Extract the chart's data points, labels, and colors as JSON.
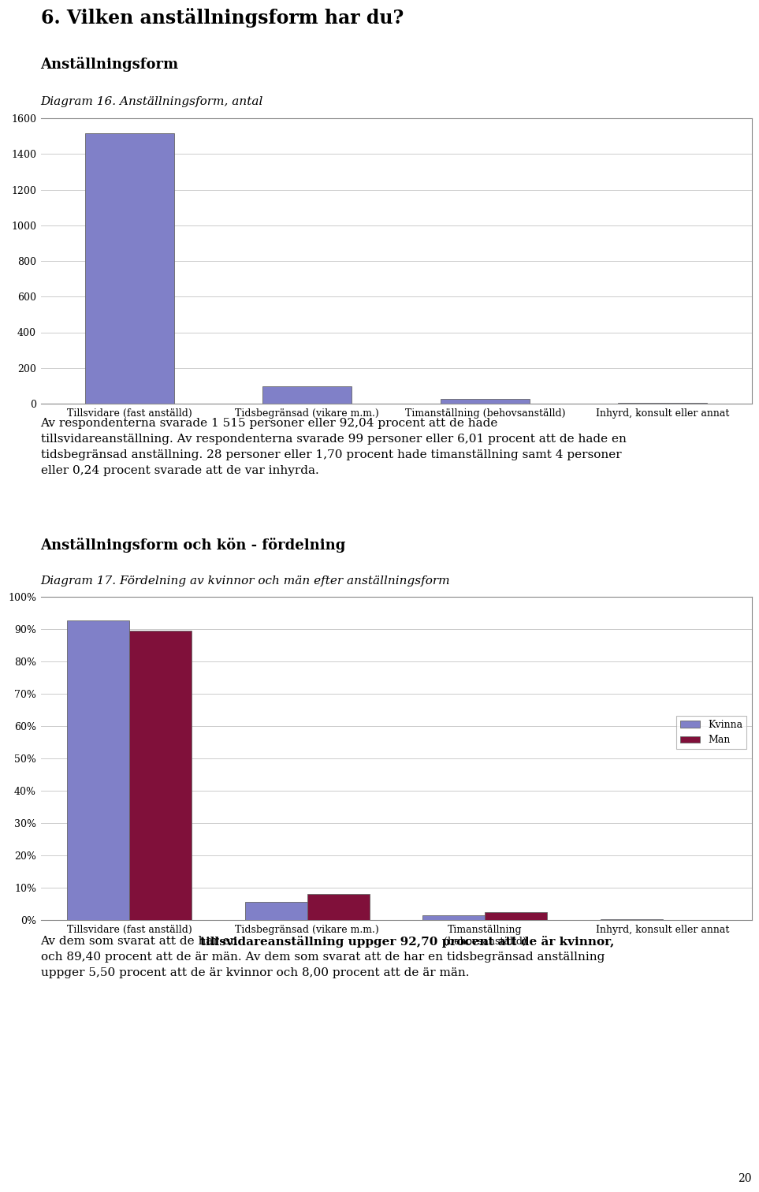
{
  "page_title": "6. Vilken anställningsform har du?",
  "section1_title": "Anställningsform",
  "diagram1_title": "Diagram 16. Anställningsform, antal",
  "chart1_categories": [
    "Tillsvidare (fast anställd)",
    "Tidsbegränsad (vikare m.m.)",
    "Timanställning (behovsanställd)",
    "Inhyrd, konsult eller annat"
  ],
  "chart1_values": [
    1515,
    99,
    28,
    4
  ],
  "chart1_color": "#8080c8",
  "chart1_yticks": [
    0,
    200,
    400,
    600,
    800,
    1000,
    1200,
    1400,
    1600
  ],
  "paragraph1_lines": [
    "Av respondenterna svarade 1 515 personer eller 92,04 procent att de hade",
    "tillsvidareanställning. Av respondenterna svarade 99 personer eller 6,01 procent att de hade en",
    "tidsbegränsad anställning. 28 personer eller 1,70 procent hade timanställning samt 4 personer",
    "eller 0,24 procent svarade att de var inhyrda."
  ],
  "section2_title": "Anställningsform och kön - fördelning",
  "diagram2_title": "Diagram 17. Fördelning av kvinnor och män efter anställningsform",
  "chart2_categories": [
    "Tillsvidare (fast anställd)",
    "Tidsbegränsad (vikare m.m.)",
    "Timanställning\n(behovsanställd)",
    "Inhyrd, konsult eller annat"
  ],
  "chart2_kvinna": [
    0.927,
    0.055,
    0.015,
    0.003
  ],
  "chart2_man": [
    0.894,
    0.08,
    0.025,
    0.001
  ],
  "kvinna_color": "#8080c8",
  "man_color": "#80103a",
  "chart2_yticks": [
    0.0,
    0.1,
    0.2,
    0.3,
    0.4,
    0.5,
    0.6,
    0.7,
    0.8,
    0.9,
    1.0
  ],
  "chart2_yticklabels": [
    "0%",
    "10%",
    "20%",
    "30%",
    "40%",
    "50%",
    "60%",
    "70%",
    "80%",
    "90%",
    "100%"
  ],
  "legend_kvinna": "Kvinna",
  "legend_man": "Man",
  "paragraph2_lines": [
    "Av dem som svarat att de har en tillsvidareanställning uppger 92,70 procent att de är kvinnor,",
    "och 89,40 procent att de är män. Av dem som svarat att de har en tidsbegränsad anställning",
    "uppger 5,50 procent att de är kvinnor och 8,00 procent att de är män."
  ],
  "paragraph2_bold_start": "tillsvidareanställning uppger 92,70 procent att de är kvinnor,",
  "page_number": "20",
  "background_color": "#ffffff",
  "text_color": "#000000",
  "grid_color": "#cccccc",
  "border_color": "#888888"
}
